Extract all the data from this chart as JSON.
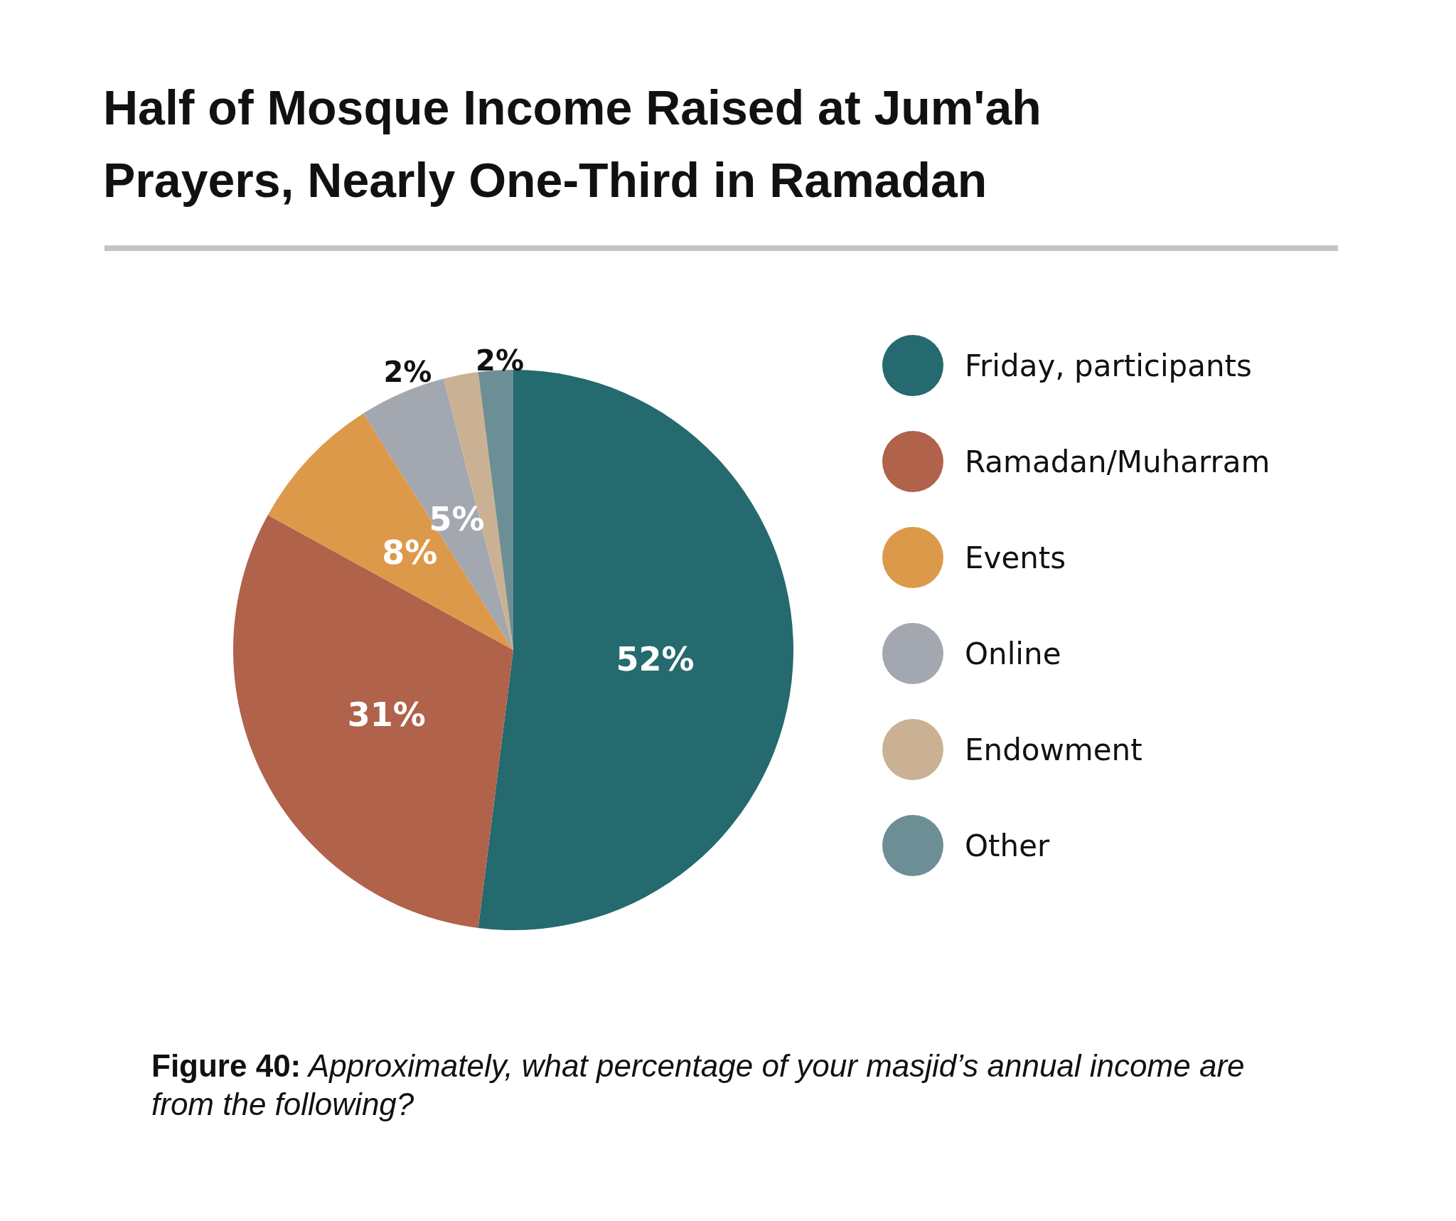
{
  "chart_data": {
    "type": "pie",
    "title": "Half of Mosque Income Raised at Jum'ah\nPrayers, Nearly One-Third in Ramadan",
    "categories": [
      "Friday, participants",
      "Ramadan/Muharram",
      "Events",
      "Online",
      "Endowment",
      "Other"
    ],
    "values": [
      52,
      31,
      8,
      5,
      2,
      2
    ],
    "colors": [
      "#246a6e",
      "#b0624a",
      "#dd994a",
      "#a3a7af",
      "#cbb193",
      "#6c8f95"
    ],
    "value_labels": [
      "52%",
      "31%",
      "8%",
      "5%",
      "2%",
      "2%"
    ],
    "legend": "right",
    "annotations": [
      "Figure 40: Approximately, what percentage of your masjid’s annual income are from the following?"
    ]
  }
}
